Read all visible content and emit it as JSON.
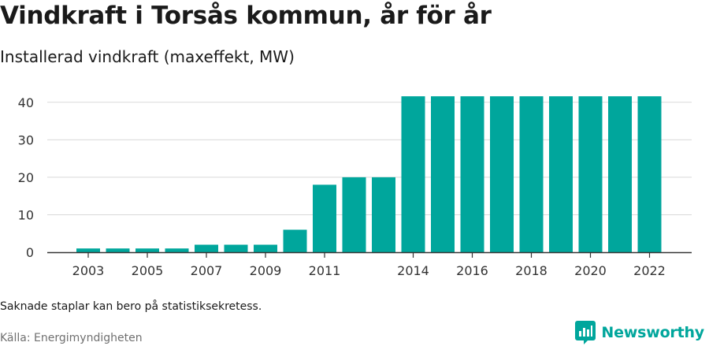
{
  "header": {
    "title": "Vindkraft i Torsås kommun, år för år",
    "subtitle": "Installerad vindkraft (maxeffekt, MW)"
  },
  "footer": {
    "note": "Saknade staplar kan bero på statistiksekretess.",
    "source": "Källa: Energimyndigheten",
    "brand": "Newsworthy"
  },
  "colors": {
    "bar": "#00a69c",
    "brand_text": "#00a69c",
    "grid": "#d9d9d9",
    "axis": "#333333"
  },
  "chart_data": {
    "type": "bar",
    "categories": [
      "2003",
      "2004",
      "2005",
      "2006",
      "2007",
      "2008",
      "2009",
      "2010",
      "2011",
      "2012",
      "2013",
      "2014",
      "2015",
      "2016",
      "2017",
      "2018",
      "2019",
      "2020",
      "2021",
      "2022"
    ],
    "values": [
      1,
      1,
      1,
      1,
      2,
      2,
      2,
      6,
      18,
      20,
      20,
      41.6,
      41.6,
      41.6,
      41.6,
      41.6,
      41.6,
      41.6,
      41.6,
      41.6
    ],
    "x_tick_labels": [
      "2003",
      "2005",
      "2007",
      "2009",
      "2011",
      "2014",
      "2016",
      "2018",
      "2020",
      "2022"
    ],
    "y_ticks": [
      0,
      10,
      20,
      30,
      40
    ],
    "ylim": [
      0,
      45
    ],
    "grid": true,
    "title": "Vindkraft i Torsås kommun, år för år",
    "subtitle": "Installerad vindkraft (maxeffekt, MW)",
    "xlabel": "",
    "ylabel": ""
  }
}
